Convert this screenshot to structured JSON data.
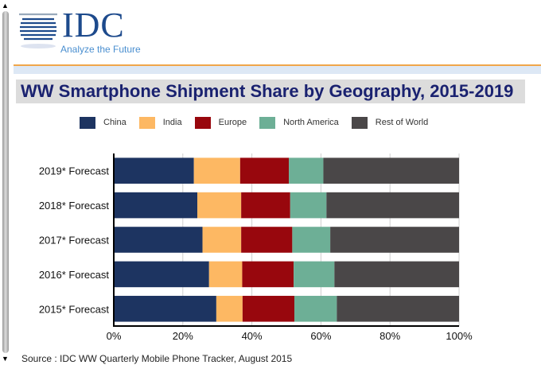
{
  "header": {
    "logo_text": "IDC",
    "tagline": "Analyze the Future"
  },
  "chart_data": {
    "type": "bar",
    "orientation": "horizontal",
    "stacked": true,
    "title": "WW Smartphone Shipment Share by Geography, 2015-2019",
    "categories": [
      "2019* Forecast",
      "2018* Forecast",
      "2017* Forecast",
      "2016* Forecast",
      "2015* Forecast"
    ],
    "series": [
      {
        "name": "China",
        "color": "#1d3461",
        "values": [
          23.2,
          24.2,
          25.7,
          27.6,
          29.7
        ]
      },
      {
        "name": "India",
        "color": "#fdb863",
        "values": [
          13.4,
          12.7,
          11.2,
          9.6,
          7.6
        ]
      },
      {
        "name": "Europe",
        "color": "#98070d",
        "values": [
          14.1,
          14.2,
          14.8,
          14.9,
          15.0
        ]
      },
      {
        "name": "North America",
        "color": "#6daf96",
        "values": [
          10.0,
          10.5,
          11.0,
          11.8,
          12.3
        ]
      },
      {
        "name": "Rest of World",
        "color": "#4a4748",
        "values": [
          39.3,
          38.4,
          37.3,
          36.1,
          35.4
        ]
      }
    ],
    "xlim": [
      0,
      100
    ],
    "xticks": [
      "0%",
      "20%",
      "40%",
      "60%",
      "80%",
      "100%"
    ],
    "grid": true,
    "legend": "top"
  },
  "footer": {
    "source": "Source : IDC WW Quarterly Mobile Phone Tracker, August 2015"
  }
}
